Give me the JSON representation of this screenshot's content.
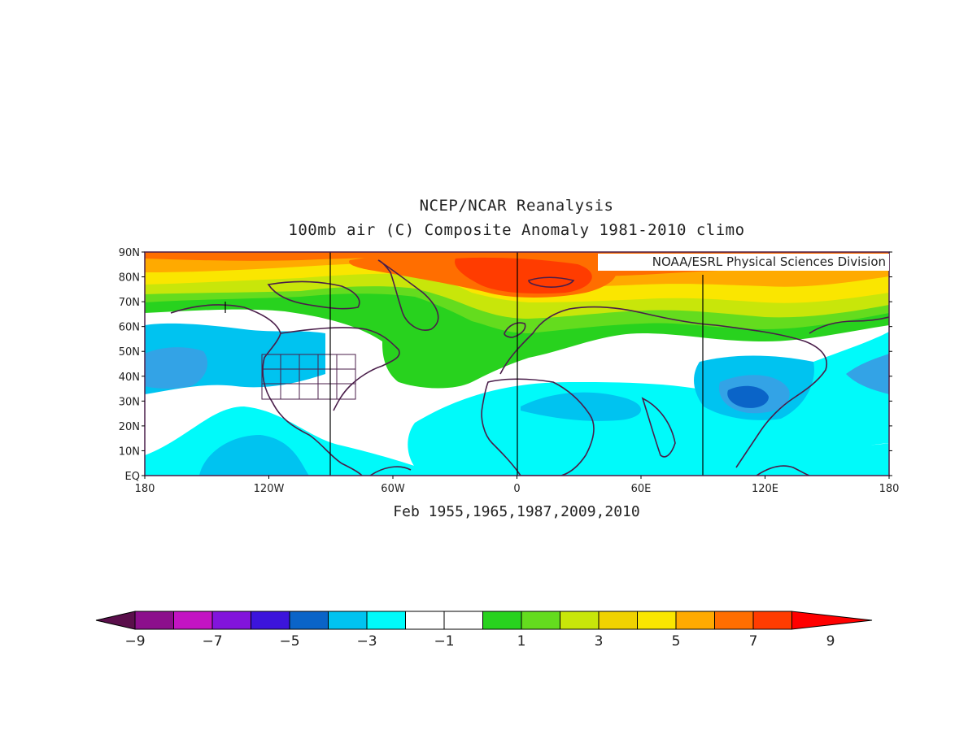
{
  "title_line1": "NCEP/NCAR Reanalysis",
  "title_line2": "100mb air (C) Composite Anomaly 1981-2010 climo",
  "credit": "NOAA/ESRL Physical Sciences Division",
  "subtitle": "Feb 1955,1965,1987,2009,2010",
  "map": {
    "lat_labels": [
      "90N",
      "80N",
      "70N",
      "60N",
      "50N",
      "40N",
      "30N",
      "20N",
      "10N",
      "EQ"
    ],
    "lon_labels": [
      "180",
      "120W",
      "60W",
      "0",
      "60E",
      "120E",
      "180"
    ]
  },
  "colorbar": {
    "colors": [
      "#5a0f4b",
      "#8c0f8c",
      "#c314c3",
      "#8214dc",
      "#3c14dc",
      "#0a64c8",
      "#00c3f0",
      "#00fafa",
      "#ffffff",
      "#ffffff",
      "#28d21e",
      "#64dc1e",
      "#c8e60a",
      "#f0d200",
      "#fae600",
      "#ffaa00",
      "#ff6e00",
      "#ff3c00",
      "#ff0000"
    ],
    "labels": [
      "-9",
      "-7",
      "-5",
      "-3",
      "-1",
      "1",
      "3",
      "5",
      "7",
      "9"
    ]
  },
  "palette": {
    "land": "#4a1e4a",
    "white": "#ffffff",
    "cyan": "#00fafa",
    "lightblue": "#00c3f0",
    "blue": "#33a3e6",
    "green": "#28d21e",
    "ltgreen": "#64dc1e",
    "yellowgreen": "#c8e60a",
    "yellow": "#fae600",
    "orange": "#ffaa00",
    "darkorange": "#ff6e00",
    "red": "#ff3c00"
  }
}
